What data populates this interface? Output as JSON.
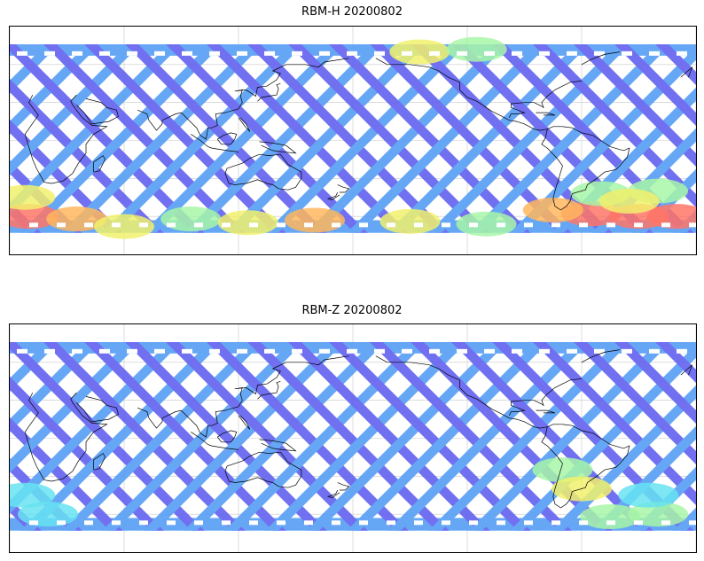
{
  "panels": [
    {
      "title": "RBM-H 20200802",
      "hotspots": [
        {
          "lon": 10,
          "lat": -60,
          "level": "red"
        },
        {
          "lon": 35,
          "lat": -62,
          "level": "orange"
        },
        {
          "lon": 60,
          "lat": -68,
          "level": "yellow"
        },
        {
          "lon": 95,
          "lat": -62,
          "level": "green"
        },
        {
          "lon": 125,
          "lat": -65,
          "level": "yellow"
        },
        {
          "lon": 160,
          "lat": -63,
          "level": "orange"
        },
        {
          "lon": 210,
          "lat": -64,
          "level": "yellow"
        },
        {
          "lon": 250,
          "lat": -66,
          "level": "green"
        },
        {
          "lon": 305,
          "lat": -58,
          "level": "red"
        },
        {
          "lon": 330,
          "lat": -60,
          "level": "red"
        },
        {
          "lon": 350,
          "lat": -60,
          "level": "red"
        },
        {
          "lon": 285,
          "lat": -55,
          "level": "orange"
        },
        {
          "lon": 310,
          "lat": -42,
          "level": "green"
        },
        {
          "lon": 340,
          "lat": -40,
          "level": "green"
        },
        {
          "lon": 325,
          "lat": -48,
          "level": "yellow"
        },
        {
          "lon": 215,
          "lat": 70,
          "level": "yellow"
        },
        {
          "lon": 245,
          "lat": 72,
          "level": "green"
        },
        {
          "lon": 8,
          "lat": -45,
          "level": "yellow"
        }
      ]
    },
    {
      "title": "RBM-Z 20200802",
      "hotspots": [
        {
          "lon": 290,
          "lat": -25,
          "level": "green"
        },
        {
          "lon": 300,
          "lat": -40,
          "level": "yellow"
        },
        {
          "lon": 315,
          "lat": -62,
          "level": "green"
        },
        {
          "lon": 340,
          "lat": -60,
          "level": "green"
        },
        {
          "lon": 20,
          "lat": -60,
          "level": "cyan"
        },
        {
          "lon": 8,
          "lat": -45,
          "level": "cyan"
        },
        {
          "lon": 335,
          "lat": -45,
          "level": "cyan"
        }
      ]
    }
  ],
  "colors": {
    "blue": "#6464f0",
    "lightblue": "#5aa0f5",
    "cyan": "#5ae0f0",
    "green": "#a0f5a0",
    "yellow": "#f0f060",
    "orange": "#ffb050",
    "red": "#ff6a5a",
    "coast": "#000000",
    "grid": "#c8c8c8"
  }
}
